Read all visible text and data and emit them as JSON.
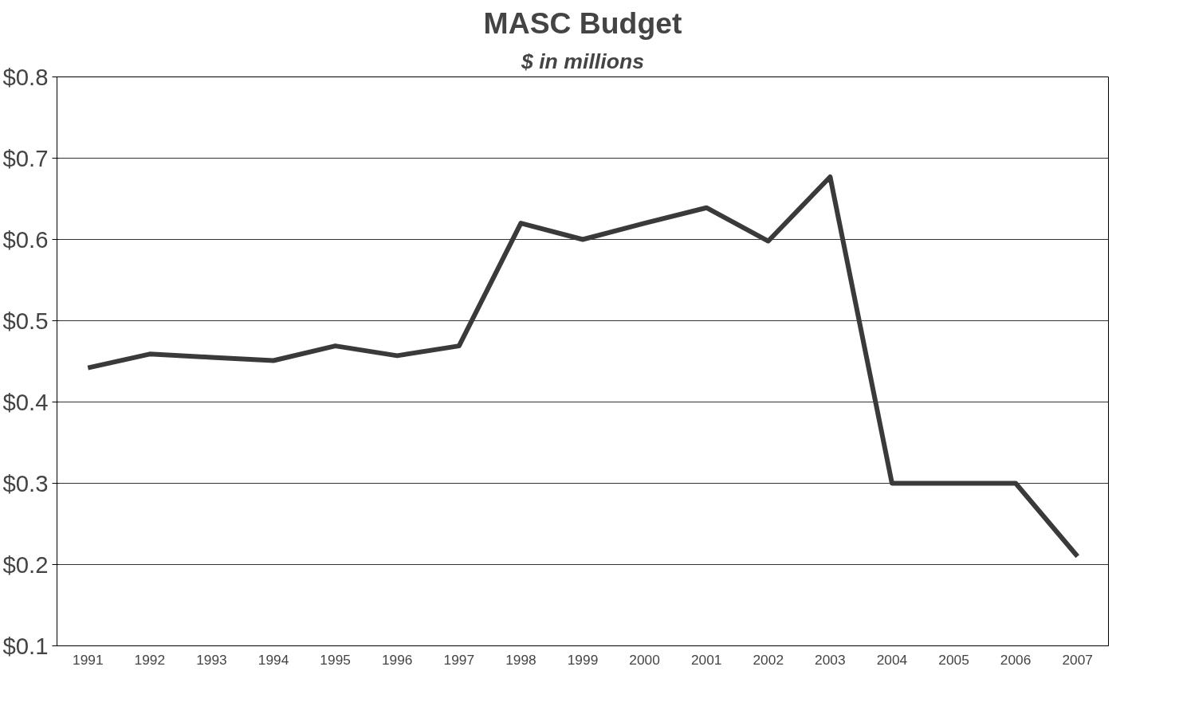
{
  "chart_data": {
    "type": "line",
    "title": "MASC Budget",
    "subtitle": "$ in millions",
    "categories": [
      "1991",
      "1992",
      "1993",
      "1994",
      "1995",
      "1996",
      "1997",
      "1998",
      "1999",
      "2000",
      "2001",
      "2002",
      "2003",
      "2004",
      "2005",
      "2006",
      "2007"
    ],
    "series": [
      {
        "color": "#3a3a3a",
        "values": [
          0.442,
          0.459,
          0.455,
          0.451,
          0.469,
          0.457,
          0.469,
          0.62,
          0.6,
          0.62,
          0.639,
          0.598,
          0.677,
          0.3,
          0.3,
          0.3,
          0.21
        ]
      }
    ],
    "ylim": [
      0.1,
      0.8
    ],
    "yticks": [
      {
        "value": 0.1,
        "label": "$0.1"
      },
      {
        "value": 0.2,
        "label": "$0.2"
      },
      {
        "value": 0.3,
        "label": "$0.3"
      },
      {
        "value": 0.4,
        "label": "$0.4"
      },
      {
        "value": 0.5,
        "label": "$0.5"
      },
      {
        "value": 0.6,
        "label": "$0.6"
      },
      {
        "value": 0.7,
        "label": "$0.7"
      },
      {
        "value": 0.8,
        "label": "$0.8"
      }
    ],
    "grid": "y",
    "marker": "none",
    "line_style": "solid"
  }
}
